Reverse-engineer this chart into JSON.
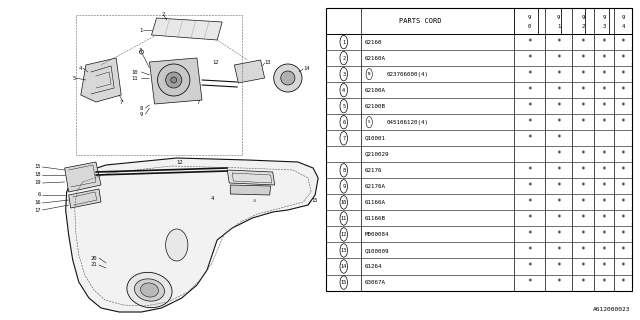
{
  "diagram_id": "A612000023",
  "bg_color": "#ffffff",
  "line_color": "#000000",
  "rows": [
    [
      "1",
      "62160",
      "*",
      "*",
      "*",
      "*",
      "*"
    ],
    [
      "2",
      "62160A",
      "*",
      "*",
      "*",
      "*",
      "*"
    ],
    [
      "3N",
      "023706000(4)",
      "*",
      "*",
      "*",
      "*",
      "*"
    ],
    [
      "4",
      "62100A",
      "*",
      "*",
      "*",
      "*",
      "*"
    ],
    [
      "5",
      "62100B",
      "*",
      "*",
      "*",
      "*",
      "*"
    ],
    [
      "6S",
      "045106120(4)",
      "*",
      "*",
      "*",
      "*",
      "*"
    ],
    [
      "7",
      "Q10001",
      "*",
      "*",
      "",
      "",
      ""
    ],
    [
      "",
      "Q210029",
      "",
      "*",
      "*",
      "*",
      "*"
    ],
    [
      "8",
      "62176",
      "*",
      "*",
      "*",
      "*",
      "*"
    ],
    [
      "9",
      "62176A",
      "*",
      "*",
      "*",
      "*",
      "*"
    ],
    [
      "10",
      "61166A",
      "*",
      "*",
      "*",
      "*",
      "*"
    ],
    [
      "11",
      "61166B",
      "*",
      "*",
      "*",
      "*",
      "*"
    ],
    [
      "12",
      "M000084",
      "*",
      "*",
      "*",
      "*",
      "*"
    ],
    [
      "13",
      "Q100009",
      "*",
      "*",
      "*",
      "*",
      "*"
    ],
    [
      "14",
      "61264",
      "*",
      "*",
      "*",
      "*",
      "*"
    ],
    [
      "15",
      "63067A",
      "*",
      "*",
      "*",
      "*",
      "*"
    ]
  ]
}
